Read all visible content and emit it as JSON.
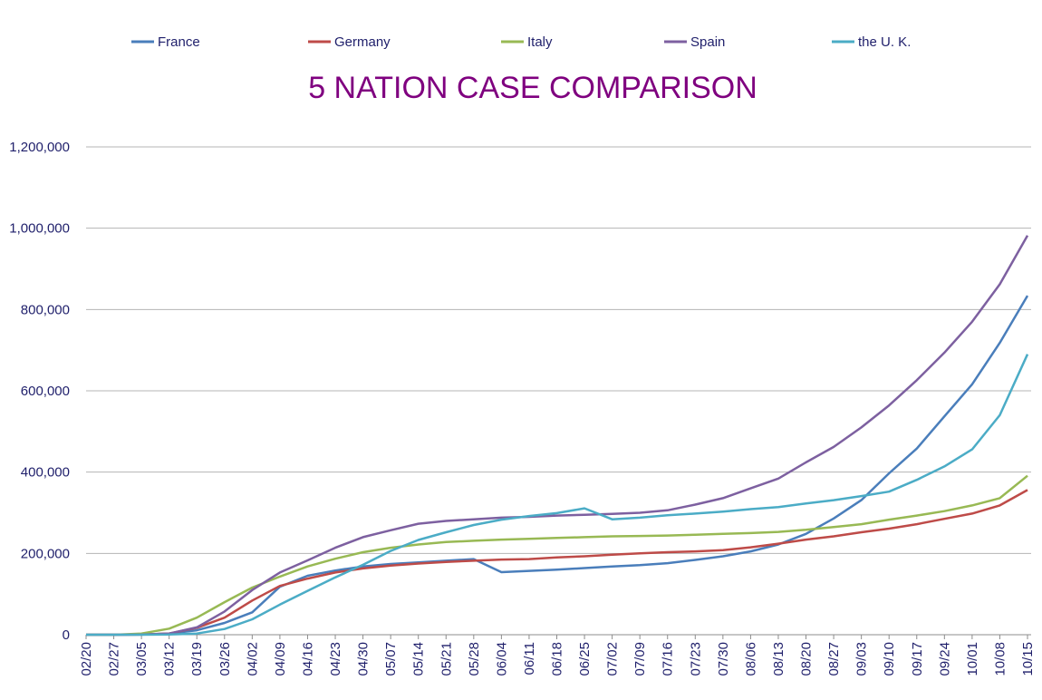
{
  "chart_data": {
    "type": "line",
    "title": "5 NATION CASE COMPARISON",
    "xlabel": "",
    "ylabel": "",
    "ylim": [
      0,
      1200000
    ],
    "y_ticks": [
      "0",
      "200,000",
      "400,000",
      "600,000",
      "800,000",
      "1,000,000",
      "1,200,000"
    ],
    "grid": "horizontal",
    "legend_position": "top",
    "categories": [
      "02/20",
      "02/27",
      "03/05",
      "03/12",
      "03/19",
      "03/26",
      "04/02",
      "04/09",
      "04/16",
      "04/23",
      "04/30",
      "05/07",
      "05/14",
      "05/21",
      "05/28",
      "06/04",
      "06/11",
      "06/18",
      "06/25",
      "07/02",
      "07/09",
      "07/16",
      "07/23",
      "07/30",
      "08/06",
      "08/13",
      "08/20",
      "08/27",
      "09/03",
      "09/10",
      "09/17",
      "09/24",
      "10/01",
      "10/08",
      "10/15"
    ],
    "series": [
      {
        "name": "France",
        "color": "#4a7ebb",
        "values": [
          0,
          0,
          400,
          2900,
          11000,
          29000,
          55000,
          118000,
          145000,
          158000,
          168000,
          174000,
          178000,
          182000,
          186000,
          154000,
          157000,
          160000,
          164000,
          168000,
          171000,
          176000,
          184000,
          193000,
          205000,
          222000,
          248000,
          286000,
          331000,
          397000,
          458000,
          537000,
          616000,
          718000,
          834000
        ]
      },
      {
        "name": "Germany",
        "color": "#be4b48",
        "values": [
          0,
          0,
          500,
          3000,
          17000,
          42000,
          84000,
          120000,
          138000,
          153000,
          163000,
          170000,
          175000,
          179000,
          182000,
          185000,
          186000,
          190000,
          193000,
          197000,
          200000,
          203000,
          205000,
          208000,
          215000,
          224000,
          234000,
          242000,
          252000,
          261000,
          272000,
          285000,
          298000,
          318000,
          356000
        ]
      },
      {
        "name": "Italy",
        "color": "#98b954",
        "values": [
          0,
          0,
          3000,
          15000,
          42000,
          80000,
          116000,
          143000,
          168000,
          187000,
          203000,
          214000,
          222000,
          228000,
          231000,
          234000,
          236000,
          238000,
          240000,
          242000,
          243000,
          244000,
          246000,
          248000,
          250000,
          253000,
          258000,
          265000,
          272000,
          283000,
          293000,
          304000,
          318000,
          336000,
          391000
        ]
      },
      {
        "name": "Spain",
        "color": "#7d60a0",
        "values": [
          0,
          0,
          300,
          3000,
          18000,
          57000,
          110000,
          153000,
          183000,
          214000,
          240000,
          257000,
          273000,
          280000,
          284000,
          288000,
          290000,
          293000,
          295000,
          297000,
          300000,
          306000,
          320000,
          336000,
          360000,
          384000,
          424000,
          462000,
          510000,
          564000,
          626000,
          694000,
          770000,
          862000,
          982000
        ]
      },
      {
        "name": "the U. K.",
        "color": "#4bacc6",
        "values": [
          0,
          0,
          100,
          500,
          3000,
          14000,
          38000,
          74000,
          108000,
          141000,
          172000,
          206000,
          233000,
          252000,
          270000,
          283000,
          292000,
          299000,
          311000,
          284000,
          288000,
          294000,
          298000,
          303000,
          309000,
          314000,
          323000,
          331000,
          341000,
          352000,
          381000,
          414000,
          456000,
          540000,
          690000
        ]
      }
    ]
  }
}
